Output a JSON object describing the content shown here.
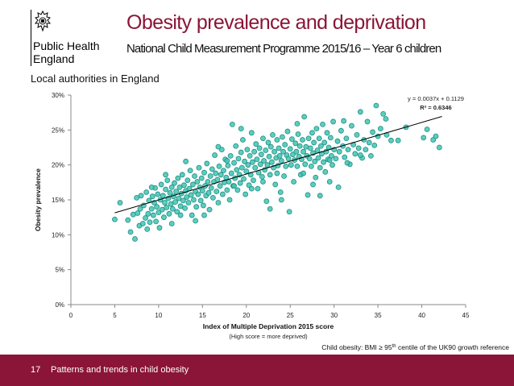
{
  "header": {
    "logo_text": "Public Health England",
    "logo_lines": [
      "Public Health",
      "England"
    ],
    "title": "Obesity prevalence and deprivation",
    "subtitle": "National Child Measurement Programme 2015/16 – Year 6 children"
  },
  "scope_label": "Local authorities in England",
  "footnote": {
    "prefix": "Child obesity: BMI ≥ 95",
    "superscript": "th",
    "suffix": " centile of the UK90 growth reference"
  },
  "footer": {
    "page_number": "17",
    "text": "Patterns and trends in child obesity"
  },
  "colors": {
    "brand": "#8a1538",
    "marker_fill": "#40c4b4",
    "marker_edge": "#1f8f82",
    "trendline": "#000000"
  },
  "chart_data": {
    "type": "scatter",
    "xlabel": "Index of Multiple Deprivation 2015 score",
    "xlabel_note": "(High score = more deprived)",
    "ylabel": "Obesity prevalence",
    "xlim": [
      0,
      45
    ],
    "ylim": [
      0,
      0.3
    ],
    "x_ticks": [
      0,
      5,
      10,
      15,
      20,
      25,
      30,
      35,
      40,
      45
    ],
    "y_ticks": [
      0,
      0.05,
      0.1,
      0.15,
      0.2,
      0.25,
      0.3
    ],
    "y_tick_labels": [
      "0%",
      "5%",
      "10%",
      "15%",
      "20%",
      "25%",
      "30%"
    ],
    "grid": false,
    "trendline": {
      "slope": 0.0037,
      "intercept": 0.1129,
      "x_range": [
        5,
        42.3
      ],
      "equation": "y = 0.0037x + 0.1129",
      "r2_label": "R² = 0.6346"
    },
    "points": [
      [
        5.0,
        0.122
      ],
      [
        5.6,
        0.146
      ],
      [
        6.5,
        0.121
      ],
      [
        6.8,
        0.104
      ],
      [
        7.1,
        0.129
      ],
      [
        7.3,
        0.094
      ],
      [
        7.5,
        0.153
      ],
      [
        7.6,
        0.131
      ],
      [
        7.8,
        0.113
      ],
      [
        7.9,
        0.137
      ],
      [
        8.0,
        0.156
      ],
      [
        8.2,
        0.116
      ],
      [
        8.3,
        0.142
      ],
      [
        8.5,
        0.124
      ],
      [
        8.6,
        0.161
      ],
      [
        8.8,
        0.13
      ],
      [
        8.9,
        0.149
      ],
      [
        9.0,
        0.118
      ],
      [
        9.2,
        0.137
      ],
      [
        9.3,
        0.155
      ],
      [
        9.4,
        0.128
      ],
      [
        9.5,
        0.146
      ],
      [
        9.6,
        0.167
      ],
      [
        9.7,
        0.119
      ],
      [
        9.8,
        0.14
      ],
      [
        9.9,
        0.158
      ],
      [
        10.0,
        0.132
      ],
      [
        10.1,
        0.11
      ],
      [
        10.2,
        0.15
      ],
      [
        10.3,
        0.172
      ],
      [
        10.4,
        0.136
      ],
      [
        10.5,
        0.156
      ],
      [
        10.6,
        0.125
      ],
      [
        10.7,
        0.146
      ],
      [
        10.8,
        0.165
      ],
      [
        10.9,
        0.139
      ],
      [
        11.0,
        0.178
      ],
      [
        11.1,
        0.152
      ],
      [
        11.2,
        0.13
      ],
      [
        11.3,
        0.16
      ],
      [
        11.4,
        0.144
      ],
      [
        11.5,
        0.168
      ],
      [
        11.6,
        0.137
      ],
      [
        11.7,
        0.155
      ],
      [
        11.8,
        0.174
      ],
      [
        11.9,
        0.147
      ],
      [
        12.0,
        0.162
      ],
      [
        12.1,
        0.133
      ],
      [
        12.2,
        0.181
      ],
      [
        12.3,
        0.152
      ],
      [
        12.4,
        0.168
      ],
      [
        12.5,
        0.141
      ],
      [
        12.6,
        0.159
      ],
      [
        12.7,
        0.186
      ],
      [
        12.8,
        0.149
      ],
      [
        12.9,
        0.171
      ],
      [
        13.0,
        0.138
      ],
      [
        13.1,
        0.163
      ],
      [
        13.2,
        0.154
      ],
      [
        13.3,
        0.178
      ],
      [
        13.4,
        0.146
      ],
      [
        13.5,
        0.166
      ],
      [
        13.6,
        0.192
      ],
      [
        13.7,
        0.157
      ],
      [
        13.8,
        0.128
      ],
      [
        13.9,
        0.172
      ],
      [
        14.0,
        0.15
      ],
      [
        14.1,
        0.184
      ],
      [
        14.2,
        0.162
      ],
      [
        14.3,
        0.14
      ],
      [
        14.4,
        0.176
      ],
      [
        14.5,
        0.158
      ],
      [
        14.6,
        0.196
      ],
      [
        14.7,
        0.168
      ],
      [
        14.8,
        0.149
      ],
      [
        14.9,
        0.181
      ],
      [
        15.0,
        0.163
      ],
      [
        15.1,
        0.142
      ],
      [
        15.2,
        0.189
      ],
      [
        15.3,
        0.17
      ],
      [
        15.4,
        0.156
      ],
      [
        15.5,
        0.202
      ],
      [
        15.6,
        0.176
      ],
      [
        15.7,
        0.16
      ],
      [
        15.8,
        0.136
      ],
      [
        15.9,
        0.184
      ],
      [
        16.0,
        0.167
      ],
      [
        16.1,
        0.194
      ],
      [
        16.2,
        0.153
      ],
      [
        16.3,
        0.176
      ],
      [
        16.4,
        0.214
      ],
      [
        16.5,
        0.188
      ],
      [
        16.6,
        0.162
      ],
      [
        16.7,
        0.179
      ],
      [
        16.8,
        0.146
      ],
      [
        16.9,
        0.198
      ],
      [
        17.0,
        0.17
      ],
      [
        17.1,
        0.186
      ],
      [
        17.2,
        0.222
      ],
      [
        17.3,
        0.158
      ],
      [
        17.4,
        0.192
      ],
      [
        17.5,
        0.175
      ],
      [
        17.6,
        0.208
      ],
      [
        17.7,
        0.182
      ],
      [
        17.8,
        0.164
      ],
      [
        17.9,
        0.199
      ],
      [
        18.0,
        0.176
      ],
      [
        18.1,
        0.15
      ],
      [
        18.2,
        0.213
      ],
      [
        18.3,
        0.188
      ],
      [
        18.4,
        0.258
      ],
      [
        18.5,
        0.17
      ],
      [
        18.6,
        0.203
      ],
      [
        18.7,
        0.181
      ],
      [
        18.8,
        0.227
      ],
      [
        18.9,
        0.193
      ],
      [
        19.0,
        0.164
      ],
      [
        19.1,
        0.209
      ],
      [
        19.2,
        0.186
      ],
      [
        19.3,
        0.174
      ],
      [
        19.4,
        0.218
      ],
      [
        19.5,
        0.196
      ],
      [
        19.6,
        0.236
      ],
      [
        19.7,
        0.18
      ],
      [
        19.8,
        0.205
      ],
      [
        19.9,
        0.158
      ],
      [
        20.0,
        0.191
      ],
      [
        20.1,
        0.222
      ],
      [
        20.2,
        0.2
      ],
      [
        20.3,
        0.171
      ],
      [
        20.4,
        0.213
      ],
      [
        20.5,
        0.186
      ],
      [
        20.6,
        0.246
      ],
      [
        20.7,
        0.204
      ],
      [
        20.8,
        0.178
      ],
      [
        20.9,
        0.219
      ],
      [
        21.0,
        0.196
      ],
      [
        21.1,
        0.23
      ],
      [
        21.2,
        0.208
      ],
      [
        21.3,
        0.166
      ],
      [
        21.4,
        0.189
      ],
      [
        21.5,
        0.224
      ],
      [
        21.6,
        0.201
      ],
      [
        21.7,
        0.215
      ],
      [
        21.8,
        0.183
      ],
      [
        21.9,
        0.238
      ],
      [
        22.0,
        0.206
      ],
      [
        22.1,
        0.193
      ],
      [
        22.2,
        0.221
      ],
      [
        22.3,
        0.148
      ],
      [
        22.4,
        0.2
      ],
      [
        22.5,
        0.232
      ],
      [
        22.6,
        0.212
      ],
      [
        22.7,
        0.186
      ],
      [
        22.8,
        0.226
      ],
      [
        22.9,
        0.204
      ],
      [
        23.0,
        0.243
      ],
      [
        23.1,
        0.196
      ],
      [
        23.2,
        0.219
      ],
      [
        23.3,
        0.172
      ],
      [
        23.4,
        0.21
      ],
      [
        23.5,
        0.236
      ],
      [
        23.6,
        0.199
      ],
      [
        23.7,
        0.224
      ],
      [
        23.8,
        0.213
      ],
      [
        23.9,
        0.161
      ],
      [
        24.0,
        0.206
      ],
      [
        24.1,
        0.24
      ],
      [
        24.2,
        0.219
      ],
      [
        24.3,
        0.184
      ],
      [
        24.4,
        0.229
      ],
      [
        24.5,
        0.198
      ],
      [
        24.6,
        0.214
      ],
      [
        24.7,
        0.248
      ],
      [
        24.8,
        0.209
      ],
      [
        24.9,
        0.133
      ],
      [
        25.0,
        0.223
      ],
      [
        25.1,
        0.2
      ],
      [
        25.2,
        0.237
      ],
      [
        25.3,
        0.215
      ],
      [
        25.4,
        0.176
      ],
      [
        25.5,
        0.207
      ],
      [
        25.6,
        0.231
      ],
      [
        25.7,
        0.219
      ],
      [
        25.8,
        0.198
      ],
      [
        25.9,
        0.244
      ],
      [
        26.0,
        0.212
      ],
      [
        26.1,
        0.227
      ],
      [
        26.2,
        0.186
      ],
      [
        26.3,
        0.208
      ],
      [
        26.4,
        0.236
      ],
      [
        26.5,
        0.219
      ],
      [
        26.6,
        0.269
      ],
      [
        26.7,
        0.201
      ],
      [
        26.8,
        0.226
      ],
      [
        26.9,
        0.213
      ],
      [
        27.0,
        0.157
      ],
      [
        27.1,
        0.238
      ],
      [
        27.2,
        0.209
      ],
      [
        27.3,
        0.224
      ],
      [
        27.4,
        0.198
      ],
      [
        27.5,
        0.246
      ],
      [
        27.6,
        0.217
      ],
      [
        27.7,
        0.232
      ],
      [
        27.8,
        0.205
      ],
      [
        27.9,
        0.182
      ],
      [
        28.0,
        0.252
      ],
      [
        28.1,
        0.221
      ],
      [
        28.2,
        0.21
      ],
      [
        28.3,
        0.238
      ],
      [
        28.4,
        0.196
      ],
      [
        28.5,
        0.227
      ],
      [
        28.6,
        0.216
      ],
      [
        28.7,
        0.258
      ],
      [
        28.8,
        0.204
      ],
      [
        28.9,
        0.232
      ],
      [
        29.0,
        0.19
      ],
      [
        29.1,
        0.219
      ],
      [
        29.2,
        0.246
      ],
      [
        29.3,
        0.208
      ],
      [
        29.4,
        0.225
      ],
      [
        29.5,
        0.176
      ],
      [
        29.6,
        0.239
      ],
      [
        29.7,
        0.213
      ],
      [
        29.8,
        0.2
      ],
      [
        29.9,
        0.262
      ],
      [
        30.0,
        0.222
      ],
      [
        30.2,
        0.209
      ],
      [
        30.4,
        0.234
      ],
      [
        30.6,
        0.219
      ],
      [
        30.8,
        0.249
      ],
      [
        31.0,
        0.227
      ],
      [
        31.2,
        0.211
      ],
      [
        31.4,
        0.238
      ],
      [
        31.6,
        0.222
      ],
      [
        31.8,
        0.201
      ],
      [
        32.0,
        0.256
      ],
      [
        32.2,
        0.229
      ],
      [
        32.4,
        0.216
      ],
      [
        32.6,
        0.243
      ],
      [
        32.8,
        0.224
      ],
      [
        33.0,
        0.276
      ],
      [
        33.2,
        0.21
      ],
      [
        33.4,
        0.236
      ],
      [
        33.6,
        0.222
      ],
      [
        33.8,
        0.262
      ],
      [
        34.0,
        0.232
      ],
      [
        34.2,
        0.213
      ],
      [
        34.4,
        0.247
      ],
      [
        34.6,
        0.228
      ],
      [
        34.8,
        0.285
      ],
      [
        35.0,
        0.241
      ],
      [
        35.3,
        0.252
      ],
      [
        35.6,
        0.273
      ],
      [
        35.9,
        0.266
      ],
      [
        36.5,
        0.235
      ],
      [
        37.3,
        0.235
      ],
      [
        38.2,
        0.254
      ],
      [
        40.2,
        0.239
      ],
      [
        40.6,
        0.251
      ],
      [
        41.3,
        0.236
      ],
      [
        41.6,
        0.241
      ],
      [
        42.0,
        0.225
      ],
      [
        30.5,
        0.168
      ],
      [
        31.5,
        0.203
      ],
      [
        28.4,
        0.156
      ],
      [
        22.7,
        0.137
      ],
      [
        17.8,
        0.206
      ],
      [
        14.2,
        0.12
      ],
      [
        12.5,
        0.128
      ],
      [
        16.8,
        0.226
      ],
      [
        19.4,
        0.252
      ],
      [
        26.5,
        0.188
      ],
      [
        33.0,
        0.214
      ],
      [
        36.0,
        0.243
      ],
      [
        27.6,
        0.172
      ],
      [
        24.0,
        0.15
      ],
      [
        20.6,
        0.166
      ],
      [
        9.2,
        0.168
      ],
      [
        11.5,
        0.116
      ],
      [
        8.7,
        0.108
      ],
      [
        13.1,
        0.205
      ],
      [
        15.2,
        0.128
      ],
      [
        21.9,
        0.176
      ],
      [
        25.8,
        0.259
      ],
      [
        29.5,
        0.207
      ],
      [
        31.1,
        0.263
      ],
      [
        23.5,
        0.188
      ],
      [
        18.6,
        0.17
      ],
      [
        10.8,
        0.186
      ]
    ]
  }
}
